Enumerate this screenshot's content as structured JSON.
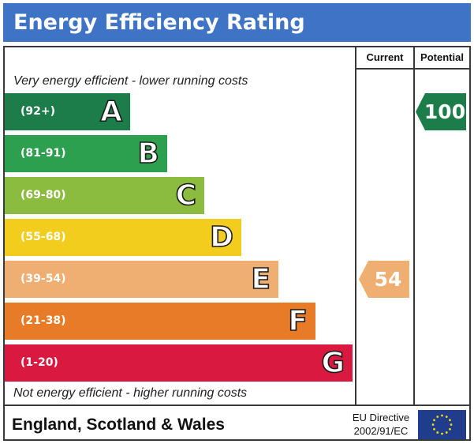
{
  "header": {
    "title": "Energy Efficiency Rating"
  },
  "columns": {
    "current": "Current",
    "potential": "Potential"
  },
  "notes": {
    "top": "Very energy efficient - lower running costs",
    "bottom": "Not energy efficient - higher running costs"
  },
  "footer": {
    "region": "England, Scotland & Wales",
    "directive_line1": "EU Directive",
    "directive_line2": "2002/91/EC",
    "flag_icon": "eu-flag-icon"
  },
  "chart_data": {
    "type": "bar",
    "categories": [
      "A",
      "B",
      "C",
      "D",
      "E",
      "F",
      "G"
    ],
    "ranges": [
      "(92+)",
      "(81-91)",
      "(69-80)",
      "(55-68)",
      "(39-54)",
      "(21-38)",
      "(1-20)"
    ],
    "colors": [
      "#1d7d4a",
      "#2da04f",
      "#8cbc3f",
      "#f2cd1e",
      "#efae72",
      "#e77b27",
      "#d91940"
    ],
    "range_text_color": "#ffffff",
    "current": {
      "value": 54,
      "band": "E",
      "color": "#efae72"
    },
    "potential": {
      "value": 100,
      "band": "A",
      "color": "#1d7d4a"
    }
  }
}
